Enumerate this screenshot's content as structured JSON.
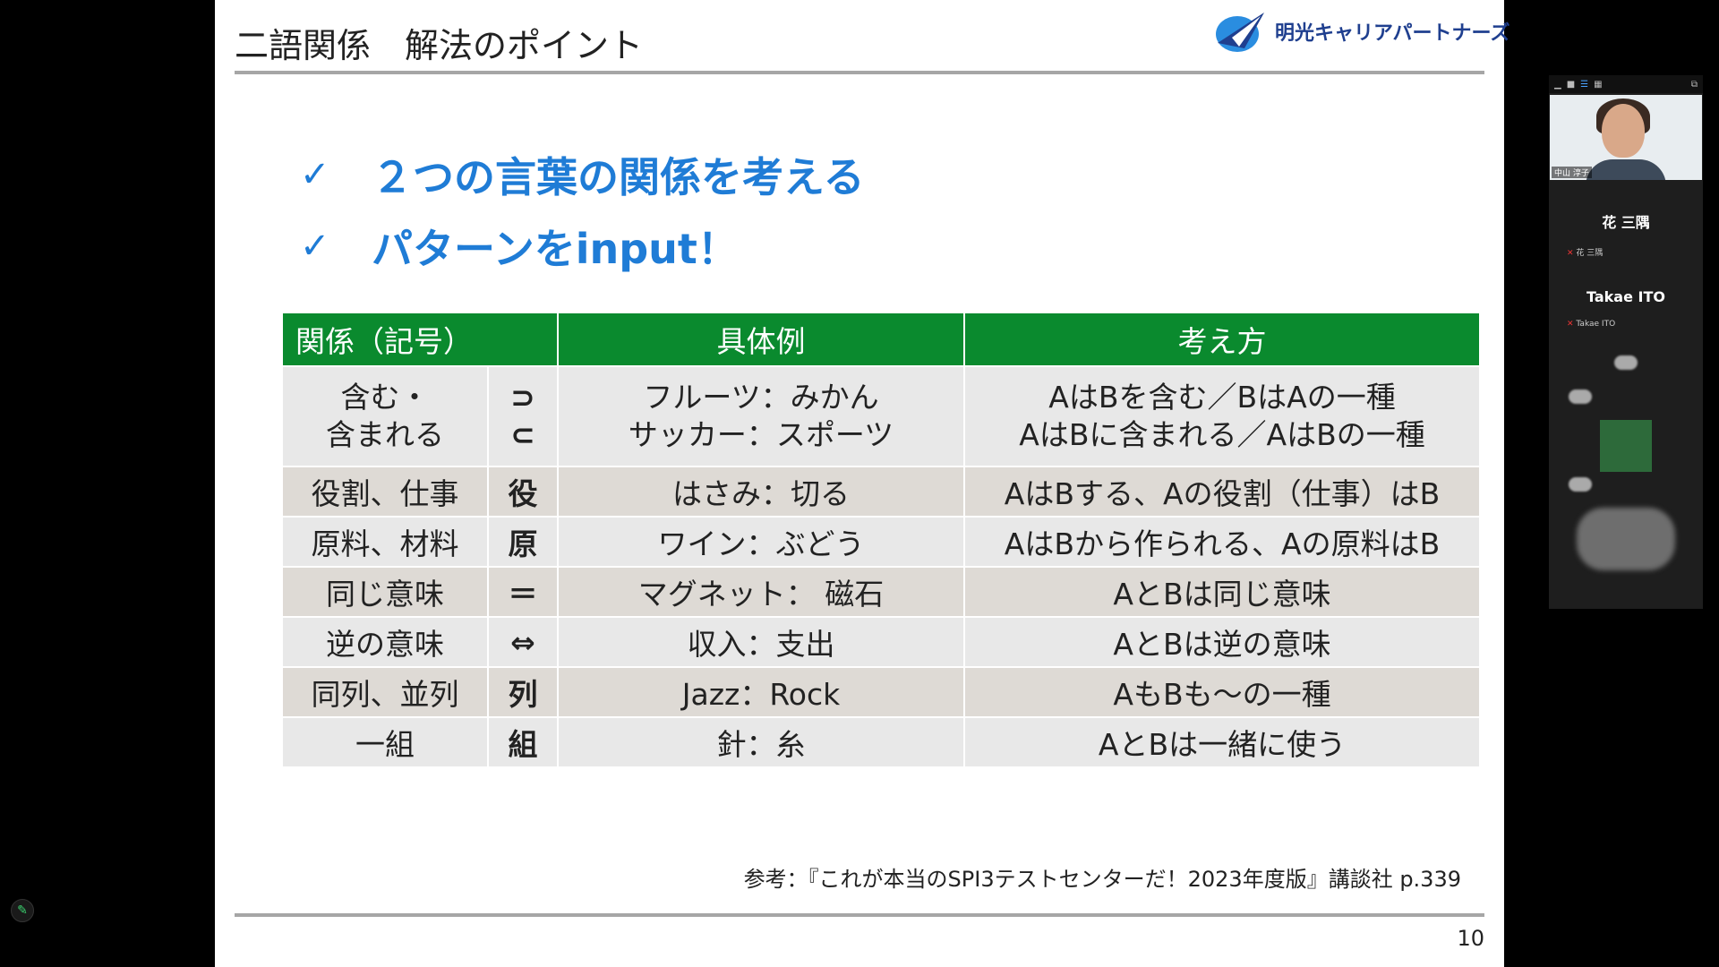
{
  "slide": {
    "title": "二語関係　解法のポイント",
    "logo_text": "明光キャリアパートナーズ",
    "bullets": [
      "２つの言葉の関係を考える",
      "パターンをinput！"
    ],
    "check_mark": "✓",
    "table": {
      "headers": [
        "関係（記号）",
        "具体例",
        "考え方"
      ],
      "rows": [
        {
          "rel": "含む・\n含まれる",
          "sym": "⊃\n⊂",
          "ex": "フルーツ：みかん\nサッカー：スポーツ",
          "way": "AはBを含む／BはAの一種\nAはBに含まれる／AはBの一種"
        },
        {
          "rel": "役割、仕事",
          "sym": "役",
          "ex": "はさみ：切る",
          "way": "AはBする、Aの役割（仕事）はB"
        },
        {
          "rel": "原料、材料",
          "sym": "原",
          "ex": "ワイン：ぶどう",
          "way": "AはBから作られる、Aの原料はB"
        },
        {
          "rel": "同じ意味",
          "sym": "＝",
          "ex": "マグネット：  磁石",
          "way": "AとBは同じ意味"
        },
        {
          "rel": "逆の意味",
          "sym": "⇔",
          "ex": "収入：支出",
          "way": "AとBは逆の意味"
        },
        {
          "rel": "同列、並列",
          "sym": "列",
          "ex": "Jazz：Rock",
          "way": "AもBも～の一種"
        },
        {
          "rel": "一組",
          "sym": "組",
          "ex": "針：糸",
          "way": "AとBは一緒に使う"
        }
      ]
    },
    "reference": "参考：『これが本当のSPI3テストセンターだ！2023年度版』講談社 p.339",
    "page_number": "10"
  },
  "participants": {
    "video_name": "中山 淳子",
    "list": [
      {
        "display": "花 三隅",
        "label": "花 三隅"
      },
      {
        "display": "Takae ITO",
        "label": "Takae ITO"
      }
    ]
  },
  "colors": {
    "header_green": "#0a8a2e",
    "bullet_blue": "#1f7cd6"
  },
  "icons": [
    "check-icon",
    "logo-icon",
    "mic-muted-icon",
    "pen-icon"
  ]
}
